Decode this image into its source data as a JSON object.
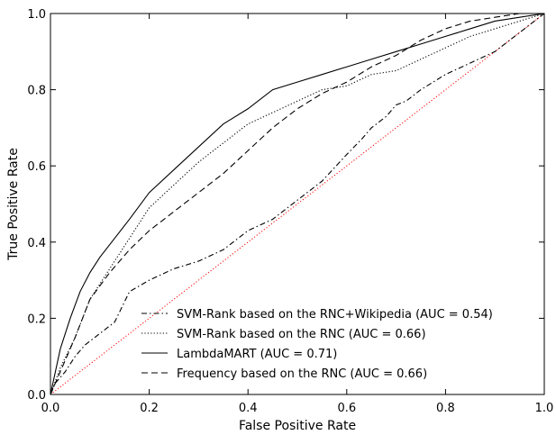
{
  "chart_data": {
    "type": "line",
    "xlabel": "False Positive Rate",
    "ylabel": "True Positive Rate",
    "xlim": [
      0.0,
      1.0
    ],
    "ylim": [
      0.0,
      1.0
    ],
    "xticks": [
      "0.0",
      "0.2",
      "0.4",
      "0.6",
      "0.8",
      "1.0"
    ],
    "yticks": [
      "0.0",
      "0.2",
      "0.4",
      "0.6",
      "0.8",
      "1.0"
    ],
    "grid": false,
    "legend_position": "lower-right",
    "series": [
      {
        "name": "SVM-Rank based on the RNC+Wikipedia (AUC = 0.54)",
        "style": "dashdot",
        "color": "#000000",
        "x": [
          0.0,
          0.01,
          0.03,
          0.05,
          0.07,
          0.1,
          0.13,
          0.16,
          0.2,
          0.25,
          0.3,
          0.35,
          0.4,
          0.45,
          0.5,
          0.55,
          0.6,
          0.63,
          0.65,
          0.68,
          0.7,
          0.72,
          0.75,
          0.8,
          0.85,
          0.9,
          0.95,
          1.0
        ],
        "y": [
          0.0,
          0.03,
          0.06,
          0.1,
          0.13,
          0.16,
          0.19,
          0.27,
          0.3,
          0.33,
          0.35,
          0.38,
          0.43,
          0.46,
          0.51,
          0.56,
          0.63,
          0.67,
          0.7,
          0.73,
          0.76,
          0.77,
          0.8,
          0.84,
          0.87,
          0.9,
          0.95,
          1.0
        ]
      },
      {
        "name": "SVM-Rank based on the RNC (AUC = 0.66)",
        "style": "dotted",
        "color": "#000000",
        "x": [
          0.0,
          0.02,
          0.05,
          0.08,
          0.12,
          0.16,
          0.2,
          0.25,
          0.3,
          0.35,
          0.4,
          0.45,
          0.5,
          0.55,
          0.6,
          0.65,
          0.7,
          0.75,
          0.8,
          0.85,
          0.9,
          0.95,
          1.0
        ],
        "y": [
          0.0,
          0.07,
          0.15,
          0.25,
          0.33,
          0.41,
          0.49,
          0.55,
          0.61,
          0.66,
          0.71,
          0.74,
          0.77,
          0.8,
          0.81,
          0.84,
          0.85,
          0.88,
          0.91,
          0.94,
          0.96,
          0.98,
          1.0
        ]
      },
      {
        "name": "LambdaMART (AUC = 0.71)",
        "style": "solid",
        "color": "#000000",
        "x": [
          0.0,
          0.01,
          0.02,
          0.04,
          0.06,
          0.08,
          0.1,
          0.13,
          0.16,
          0.2,
          0.25,
          0.3,
          0.35,
          0.4,
          0.45,
          0.5,
          0.55,
          0.6,
          0.65,
          0.7,
          0.75,
          0.8,
          0.85,
          0.9,
          0.95,
          1.0
        ],
        "y": [
          0.0,
          0.06,
          0.12,
          0.2,
          0.27,
          0.32,
          0.36,
          0.41,
          0.46,
          0.53,
          0.59,
          0.65,
          0.71,
          0.75,
          0.8,
          0.82,
          0.84,
          0.86,
          0.88,
          0.9,
          0.92,
          0.94,
          0.96,
          0.98,
          0.99,
          1.0
        ]
      },
      {
        "name": "Frequency based on the RNC (AUC = 0.66)",
        "style": "dashed",
        "color": "#000000",
        "x": [
          0.0,
          0.02,
          0.05,
          0.08,
          0.12,
          0.16,
          0.2,
          0.25,
          0.3,
          0.35,
          0.4,
          0.45,
          0.5,
          0.55,
          0.6,
          0.65,
          0.7,
          0.75,
          0.8,
          0.85,
          0.9,
          0.95,
          1.0
        ],
        "y": [
          0.0,
          0.06,
          0.15,
          0.25,
          0.32,
          0.38,
          0.43,
          0.48,
          0.53,
          0.58,
          0.64,
          0.7,
          0.75,
          0.79,
          0.82,
          0.86,
          0.89,
          0.93,
          0.96,
          0.98,
          0.99,
          1.0,
          1.0
        ]
      },
      {
        "name": "",
        "style": "dotted",
        "color": "#ff0000",
        "x": [
          0.0,
          1.0
        ],
        "y": [
          0.0,
          1.0
        ]
      }
    ]
  }
}
